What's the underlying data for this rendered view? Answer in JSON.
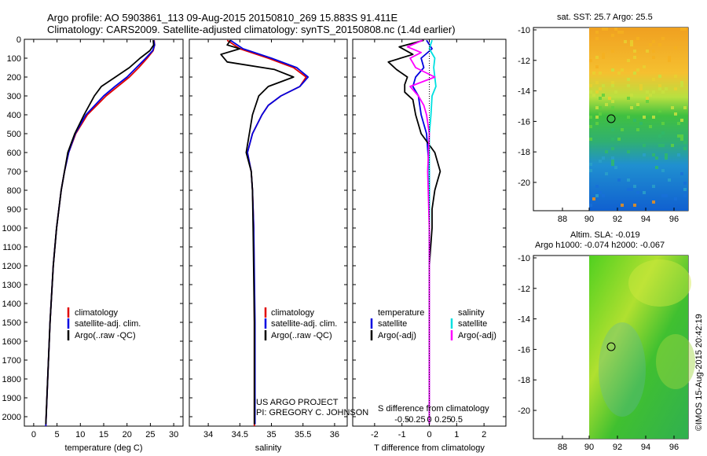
{
  "header": {
    "line1": "Argo profile: AO 5903861_113 09-Aug-2015 20150810_269 15.883S 91.411E",
    "line2": "Climatology: CARS2009. Satellite-adjusted climatology: synTS_20150808.nc (1.4d earlier)"
  },
  "colors": {
    "climatology": "#e00000",
    "satellite": "#0000e0",
    "argo": "#000000",
    "sat_sal": "#00e0e0",
    "argo_sal": "#ff00ff"
  },
  "depth_axis": {
    "ticks": [
      0,
      100,
      200,
      300,
      400,
      500,
      600,
      700,
      800,
      900,
      1000,
      1100,
      1200,
      1300,
      1400,
      1500,
      1600,
      1700,
      1800,
      1900,
      2000
    ],
    "max": 2050
  },
  "chart_data": [
    {
      "type": "line",
      "id": "temperature",
      "xlabel": "temperature (deg C)",
      "xlim": [
        -2,
        32
      ],
      "xticks": [
        0,
        5,
        10,
        15,
        20,
        25,
        30
      ],
      "legend": [
        "climatology",
        "satellite-adj. clim.",
        "Argo(..raw -QC)"
      ],
      "series": [
        {
          "name": "climatology",
          "color": "#e00000",
          "depth": [
            5,
            30,
            60,
            100,
            150,
            200,
            250,
            300,
            400,
            500,
            600,
            700,
            800,
            1000,
            1200,
            1500,
            1800,
            2050
          ],
          "values": [
            25.8,
            25.9,
            25.6,
            24.3,
            22.5,
            20.5,
            18.0,
            15.5,
            11.5,
            9.0,
            7.5,
            6.6,
            5.9,
            4.9,
            4.2,
            3.5,
            3.0,
            2.6
          ]
        },
        {
          "name": "satellite-adj. clim.",
          "color": "#0000e0",
          "depth": [
            5,
            30,
            60,
            100,
            150,
            200,
            250,
            300,
            400,
            500,
            600,
            700,
            800,
            1000,
            1200,
            1500,
            1800,
            2050
          ],
          "values": [
            25.7,
            25.9,
            25.5,
            24.0,
            22.0,
            20.0,
            17.4,
            15.0,
            11.2,
            8.9,
            7.5,
            6.6,
            5.9,
            4.9,
            4.2,
            3.5,
            3.0,
            2.6
          ]
        },
        {
          "name": "Argo(..raw -QC)",
          "color": "#000000",
          "depth": [
            5,
            30,
            60,
            100,
            150,
            200,
            250,
            300,
            400,
            500,
            600,
            700,
            800,
            1000,
            1200,
            1500,
            1800,
            2040
          ],
          "values": [
            25.6,
            25.7,
            24.9,
            22.8,
            20.5,
            17.5,
            14.5,
            13.0,
            10.8,
            8.8,
            7.3,
            6.6,
            5.9,
            4.9,
            4.2,
            3.5,
            3.0,
            2.6
          ]
        }
      ]
    },
    {
      "type": "line",
      "id": "salinity",
      "xlabel": "salinity",
      "xlim": [
        33.7,
        36.2
      ],
      "xticks": [
        34,
        34.5,
        35,
        35.5,
        36
      ],
      "legend": [
        "climatology",
        "satellite-adj. clim.",
        "Argo(..raw -QC)"
      ],
      "credits": [
        "US ARGO PROJECT",
        "PI: GREGORY C. JOHNSON"
      ],
      "series": [
        {
          "name": "climatology",
          "color": "#e00000",
          "depth": [
            5,
            50,
            100,
            150,
            200,
            250,
            300,
            350,
            400,
            500,
            600,
            700,
            800,
            1000,
            1500,
            2050
          ],
          "values": [
            34.3,
            34.5,
            34.95,
            35.35,
            35.55,
            35.45,
            35.15,
            34.95,
            34.85,
            34.7,
            34.62,
            34.68,
            34.7,
            34.72,
            34.73,
            34.73
          ]
        },
        {
          "name": "satellite-adj. clim.",
          "color": "#0000e0",
          "depth": [
            5,
            50,
            100,
            150,
            200,
            250,
            300,
            350,
            400,
            500,
            600,
            700,
            800,
            1000,
            1500,
            2040
          ],
          "values": [
            34.35,
            34.55,
            35.0,
            35.4,
            35.58,
            35.45,
            35.15,
            34.95,
            34.85,
            34.7,
            34.62,
            34.68,
            34.7,
            34.72,
            34.74,
            34.74
          ]
        },
        {
          "name": "Argo(..raw -QC)",
          "color": "#000000",
          "depth": [
            5,
            30,
            50,
            80,
            120,
            160,
            200,
            250,
            300,
            350,
            400,
            500,
            600,
            700,
            800,
            1000,
            1500,
            2040
          ],
          "values": [
            34.35,
            34.3,
            34.5,
            34.2,
            34.3,
            35.05,
            35.35,
            34.95,
            34.8,
            34.75,
            34.7,
            34.65,
            34.6,
            34.68,
            34.7,
            34.71,
            34.73,
            34.73
          ]
        }
      ]
    },
    {
      "type": "line",
      "id": "differences",
      "xlabel": "T difference from climatology",
      "xlim": [
        -2.8,
        2.8
      ],
      "xticks": [
        -2,
        -1,
        0,
        1,
        2
      ],
      "top_label": "S difference from climatology",
      "top_ticks": [
        "-0.5",
        "-0.25",
        "0",
        "0.25",
        "0.5"
      ],
      "legend_t_title": "temperature",
      "legend_s_title": "salinity",
      "legend_t": [
        "satellite",
        "Argo(-adj)"
      ],
      "legend_s": [
        "satellite",
        "Argo(-adj)"
      ],
      "series": [
        {
          "name": "T satellite",
          "color": "#0000e0",
          "depth": [
            5,
            50,
            100,
            150,
            200,
            250,
            300,
            400,
            500,
            700,
            1000,
            1500,
            2040
          ],
          "values": [
            -0.1,
            0.1,
            -0.3,
            -0.2,
            -0.5,
            -0.6,
            -0.4,
            -0.3,
            -0.1,
            0,
            0,
            0,
            0
          ]
        },
        {
          "name": "T Argo(-adj)",
          "color": "#000000",
          "depth": [
            5,
            40,
            80,
            120,
            160,
            200,
            240,
            280,
            320,
            400,
            500,
            600,
            700,
            750,
            800,
            900,
            1000,
            1200,
            1500,
            1800,
            2040
          ],
          "values": [
            -0.2,
            -1.1,
            -0.6,
            -1.5,
            -1.2,
            -0.8,
            -0.9,
            -0.9,
            -0.6,
            -0.5,
            -0.3,
            0.2,
            0.4,
            0.3,
            0.2,
            0.1,
            0.1,
            0,
            0,
            0,
            0
          ]
        },
        {
          "name": "S satellite",
          "color": "#00e0e0",
          "depth": [
            5,
            50,
            100,
            150,
            200,
            250,
            300,
            400,
            500,
            700,
            1000,
            1500,
            2040
          ],
          "values": [
            0.05,
            0.0,
            0.1,
            0.08,
            0.1,
            0.12,
            0.05,
            0.03,
            0.0,
            0,
            0,
            0,
            0
          ]
        },
        {
          "name": "S Argo(-adj)",
          "color": "#ff00ff",
          "depth": [
            5,
            40,
            70,
            100,
            150,
            200,
            250,
            300,
            350,
            400,
            500,
            700,
            1000,
            1500,
            2040
          ],
          "values": [
            -0.12,
            -0.4,
            -0.15,
            -0.35,
            -0.25,
            0.1,
            -0.35,
            -0.2,
            -0.1,
            -0.05,
            0,
            -0.03,
            0,
            0,
            0
          ]
        }
      ]
    }
  ],
  "sst_map": {
    "title": "sat. SST: 25.7 Argo: 25.5",
    "xticks": [
      "88",
      "90",
      "92",
      "94",
      "96"
    ],
    "yticks": [
      "-10",
      "-12",
      "-14",
      "-16",
      "-18",
      "-20"
    ]
  },
  "sla_map": {
    "title1": "Altim. SLA: -0.019",
    "title2": "Argo h1000: -0.074 h2000: -0.067",
    "xticks": [
      "88",
      "90",
      "92",
      "94",
      "96"
    ],
    "yticks": [
      "-10",
      "-12",
      "-14",
      "-16",
      "-18",
      "-20"
    ]
  },
  "stamp": "©IMOS 15-Aug-2015 20:42:19"
}
